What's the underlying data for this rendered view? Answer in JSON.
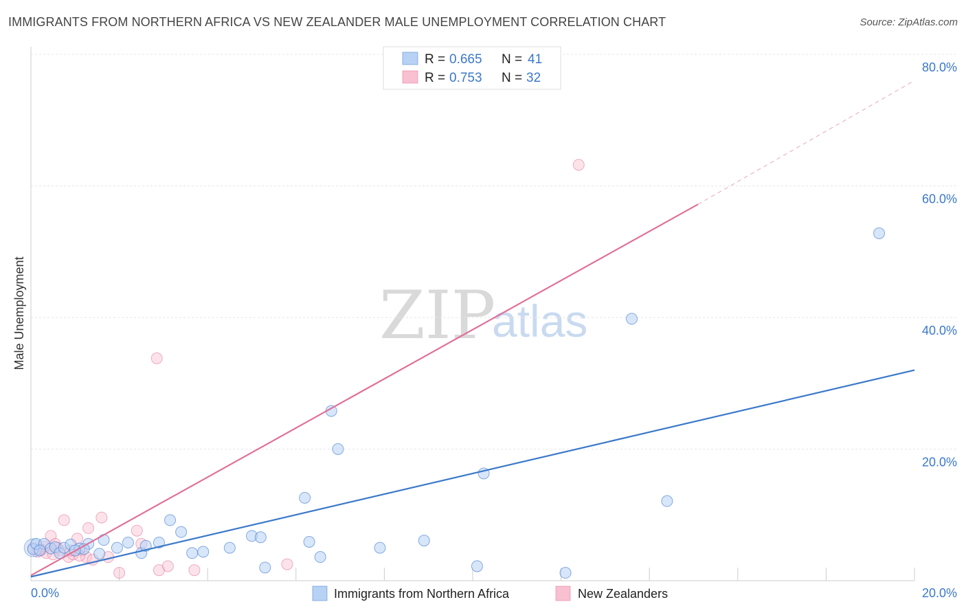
{
  "header": {
    "title": "IMMIGRANTS FROM NORTHERN AFRICA VS NEW ZEALANDER MALE UNEMPLOYMENT CORRELATION CHART",
    "source": "Source: ZipAtlas.com"
  },
  "watermark": {
    "zip": "ZIP",
    "atlas": "atlas"
  },
  "colors": {
    "blue": "#3a78c9",
    "pink": "#e07099",
    "blue_fill": "#b8d2f5",
    "pink_fill": "#f8c0d0"
  },
  "legend": {
    "rows": [
      {
        "r_label": "R =",
        "r_value": "0.665",
        "n_label": "N =",
        "n_value": "41"
      },
      {
        "r_label": "R =",
        "r_value": "0.753",
        "n_label": "N =",
        "n_value": "32"
      }
    ]
  },
  "bottom_legend": {
    "items": [
      {
        "label": "Immigrants from Northern Africa"
      },
      {
        "label": "New Zealanders"
      }
    ]
  },
  "chart_data": {
    "type": "scatter",
    "title": "IMMIGRANTS FROM NORTHERN AFRICA VS NEW ZEALANDER MALE UNEMPLOYMENT CORRELATION CHART",
    "ylabel": "Male Unemployment",
    "xlabel": "",
    "xlim": [
      0,
      20
    ],
    "ylim": [
      0,
      80
    ],
    "x_ticks": [
      "0.0%",
      "20.0%"
    ],
    "y_ticks": [
      {
        "value": 20,
        "label": "20.0%"
      },
      {
        "value": 40,
        "label": "40.0%"
      },
      {
        "value": 60,
        "label": "60.0%"
      },
      {
        "value": 80,
        "label": "80.0%"
      }
    ],
    "grid": true,
    "legend_position": "top-center",
    "series": [
      {
        "name": "Immigrants from Northern Africa",
        "R": 0.665,
        "N": 41,
        "trend": {
          "x0": 0,
          "y0": 0.6,
          "x1": 20,
          "y1": 32.0
        },
        "points": [
          [
            0.05,
            4.8
          ],
          [
            0.12,
            5.6
          ],
          [
            0.3,
            5.6
          ],
          [
            0.45,
            4.9
          ],
          [
            0.55,
            5.1
          ],
          [
            0.65,
            4.2
          ],
          [
            0.75,
            5.0
          ],
          [
            0.9,
            5.5
          ],
          [
            1.1,
            4.9
          ],
          [
            1.3,
            5.6
          ],
          [
            1.55,
            4.1
          ],
          [
            1.65,
            6.2
          ],
          [
            1.95,
            5.0
          ],
          [
            2.2,
            5.8
          ],
          [
            2.5,
            4.2
          ],
          [
            2.6,
            5.3
          ],
          [
            2.9,
            5.8
          ],
          [
            3.15,
            9.2
          ],
          [
            3.4,
            7.4
          ],
          [
            3.65,
            4.2
          ],
          [
            3.9,
            4.4
          ],
          [
            4.5,
            5.0
          ],
          [
            5.0,
            6.8
          ],
          [
            5.2,
            6.6
          ],
          [
            5.3,
            2.0
          ],
          [
            6.2,
            12.6
          ],
          [
            6.3,
            5.9
          ],
          [
            6.55,
            3.6
          ],
          [
            6.8,
            25.8
          ],
          [
            6.95,
            20.0
          ],
          [
            7.9,
            5.0
          ],
          [
            8.9,
            6.1
          ],
          [
            10.1,
            2.2
          ],
          [
            10.25,
            16.3
          ],
          [
            12.1,
            1.2
          ],
          [
            13.6,
            39.8
          ],
          [
            14.4,
            12.1
          ],
          [
            19.2,
            52.8
          ],
          [
            0.2,
            4.6
          ],
          [
            1.2,
            4.8
          ],
          [
            1.0,
            4.6
          ]
        ]
      },
      {
        "name": "New Zealanders",
        "R": 0.753,
        "N": 32,
        "trend": {
          "x0": 0,
          "y0": 0.8,
          "x1": 15.1,
          "y1": 57.2,
          "dash_to_x": 20,
          "dash_to_y": 76.0
        },
        "points": [
          [
            0.05,
            5.0
          ],
          [
            0.15,
            4.4
          ],
          [
            0.25,
            4.7
          ],
          [
            0.35,
            4.2
          ],
          [
            0.45,
            6.8
          ],
          [
            0.55,
            5.6
          ],
          [
            0.65,
            4.6
          ],
          [
            0.75,
            9.2
          ],
          [
            0.85,
            3.6
          ],
          [
            0.95,
            4.0
          ],
          [
            1.05,
            6.4
          ],
          [
            1.15,
            4.6
          ],
          [
            1.25,
            3.6
          ],
          [
            1.3,
            8.0
          ],
          [
            1.4,
            3.2
          ],
          [
            1.6,
            9.6
          ],
          [
            1.75,
            3.6
          ],
          [
            2.0,
            1.2
          ],
          [
            2.4,
            7.6
          ],
          [
            2.5,
            5.6
          ],
          [
            2.85,
            33.8
          ],
          [
            2.9,
            1.6
          ],
          [
            3.1,
            2.2
          ],
          [
            3.7,
            1.6
          ],
          [
            5.8,
            2.5
          ],
          [
            12.4,
            63.2
          ],
          [
            0.3,
            5.2
          ],
          [
            0.5,
            4.0
          ],
          [
            0.9,
            4.6
          ],
          [
            1.1,
            3.8
          ],
          [
            0.2,
            4.8
          ],
          [
            0.6,
            5.0
          ]
        ]
      }
    ]
  }
}
